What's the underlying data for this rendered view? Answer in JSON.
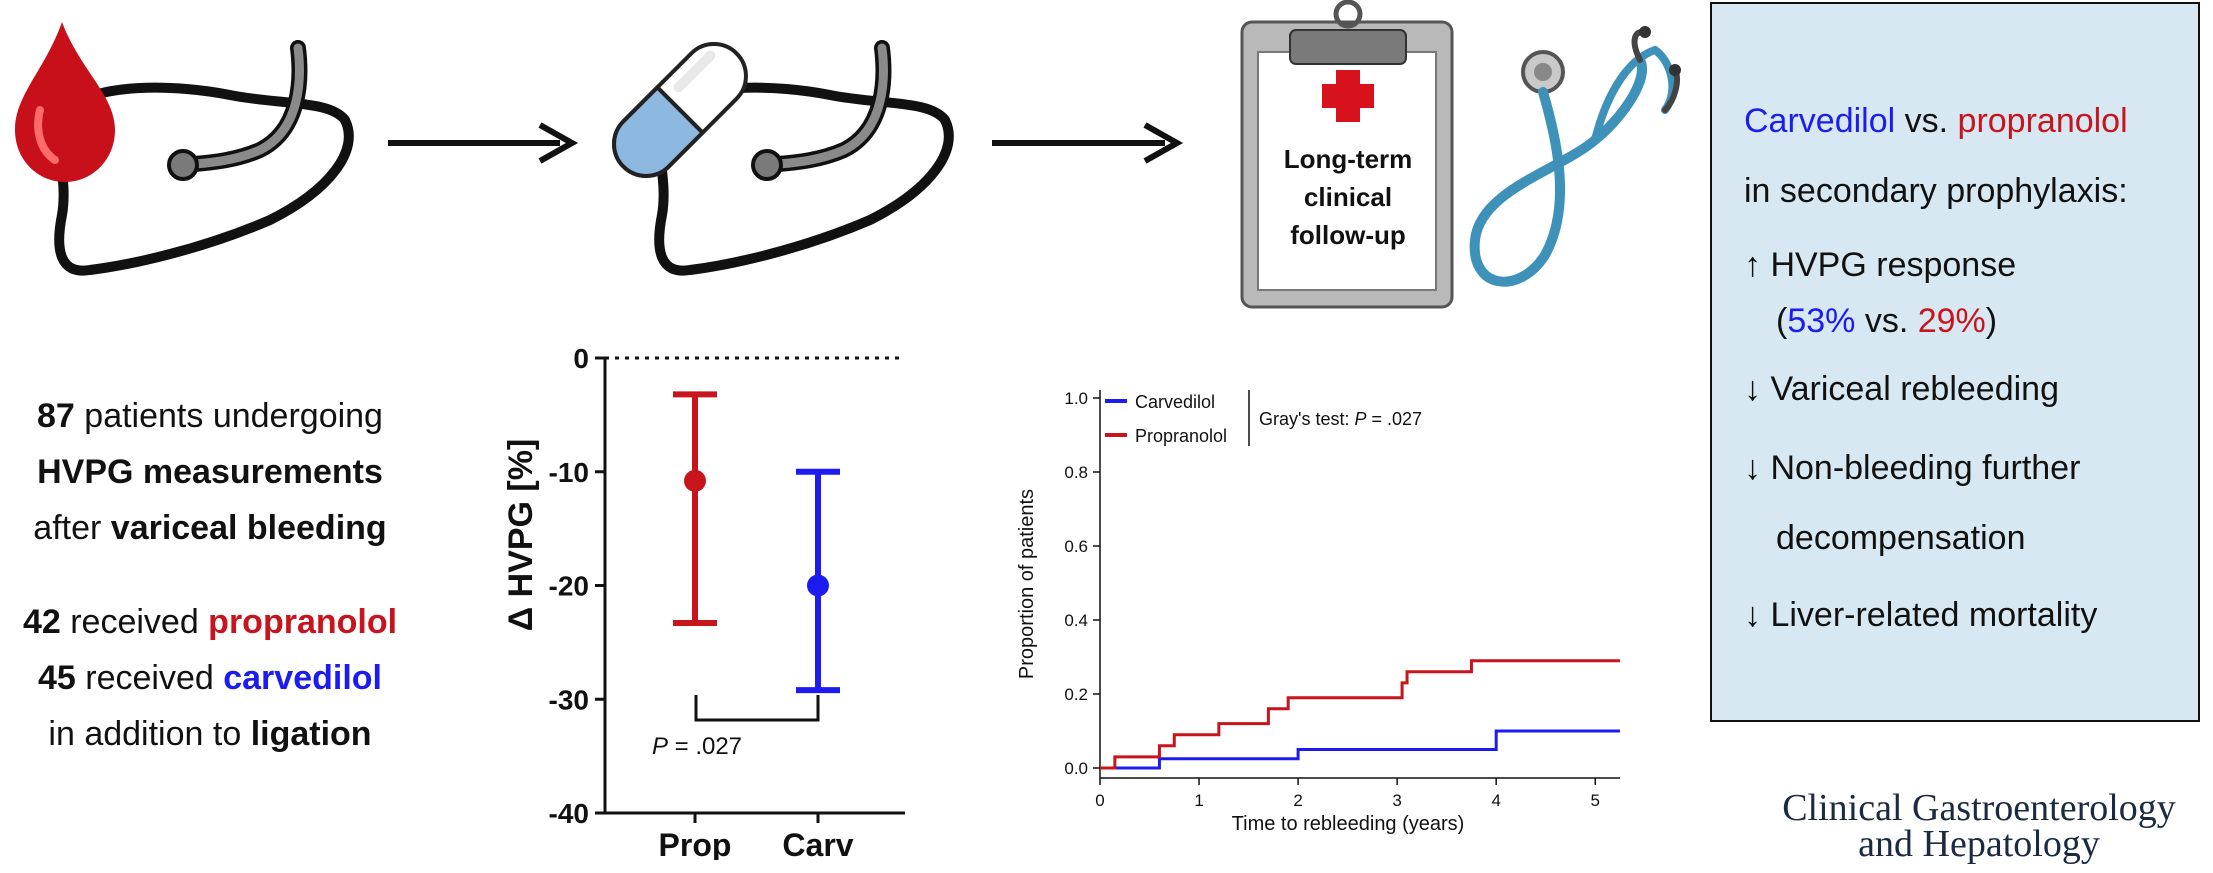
{
  "summary": {
    "line1_num": "87",
    "line1_text": " patients undergoing",
    "line2": "HVPG measurements",
    "line3_pre": "after ",
    "line3_bold": "variceal bleeding",
    "line4_num": "42",
    "line4_text": " received ",
    "line4_drug": "propranolol",
    "line5_num": "45",
    "line5_text": " received ",
    "line5_drug": "carvedilol",
    "line6_pre": "in addition to ",
    "line6_bold": "ligation"
  },
  "clipboard_label": [
    "Long-term",
    "clinical",
    "follow-up"
  ],
  "hvpg_chart": {
    "ylabel": "Δ HVPG [%]",
    "yticks": [
      "0",
      "-10",
      "-20",
      "-30",
      "-40"
    ],
    "categories": [
      "Prop",
      "Carv"
    ],
    "p_prefix": "P",
    "p_value": " = .027"
  },
  "km_chart": {
    "ylabel": "Proportion of patients",
    "xlabel": "Time to rebleeding (years)",
    "yticks": [
      "0.0",
      "0.2",
      "0.4",
      "0.6",
      "0.8",
      "1.0"
    ],
    "xticks": [
      "0",
      "1",
      "2",
      "3",
      "4",
      "5"
    ],
    "legend": [
      "Carvedilol",
      "Propranolol"
    ],
    "test_prefix": "Gray's test: ",
    "test_p": "P",
    "test_value": " = .027"
  },
  "box": {
    "l1_a": "Carvedilol",
    "l1_b": " vs. ",
    "l1_c": "propranolol",
    "l2": "in secondary prophylaxis:",
    "l3": "↑ HVPG response",
    "l4_open": "(",
    "l4_a": "53%",
    "l4_b": " vs. ",
    "l4_c": "29%",
    "l4_close": ")",
    "l5": "↓ Variceal rebleeding",
    "l6": "↓ Non-bleeding further",
    "l7": "decompensation",
    "l8": "↓ Liver-related mortality"
  },
  "journal": [
    "Clinical Gastroenterology",
    "and Hepatology"
  ],
  "colors": {
    "red": "#c8141c",
    "blue": "#1c1cf0",
    "box": "#d7e8f2"
  },
  "chart_data": [
    {
      "type": "scatter",
      "ylabel": "Δ HVPG [%]",
      "categories": [
        "Prop",
        "Carv"
      ],
      "means": [
        -10.8,
        -20.0
      ],
      "upper": [
        -3.2,
        -10.0
      ],
      "lower": [
        -23.3,
        -29.2
      ],
      "ylim": [
        -40,
        0
      ],
      "annotation": "P = .027"
    },
    {
      "type": "line",
      "xlabel": "Time to rebleeding (years)",
      "ylabel": "Proportion of patients",
      "xlim": [
        0,
        5.25
      ],
      "ylim": [
        0,
        1.0
      ],
      "legend_position": "top-left",
      "series": [
        {
          "name": "Carvedilol",
          "color": "#1c1cf0",
          "x": [
            0,
            0.6,
            2.0,
            4.0,
            5.25
          ],
          "y": [
            0,
            0.025,
            0.05,
            0.1,
            0.1
          ]
        },
        {
          "name": "Propranolol",
          "color": "#c8141c",
          "x": [
            0,
            0.15,
            0.6,
            0.75,
            1.2,
            1.7,
            1.9,
            3.05,
            3.1,
            3.75,
            5.25
          ],
          "y": [
            0,
            0.03,
            0.06,
            0.09,
            0.12,
            0.16,
            0.19,
            0.23,
            0.26,
            0.29,
            0.29
          ]
        }
      ],
      "annotation": "Gray's test: P = .027"
    }
  ]
}
